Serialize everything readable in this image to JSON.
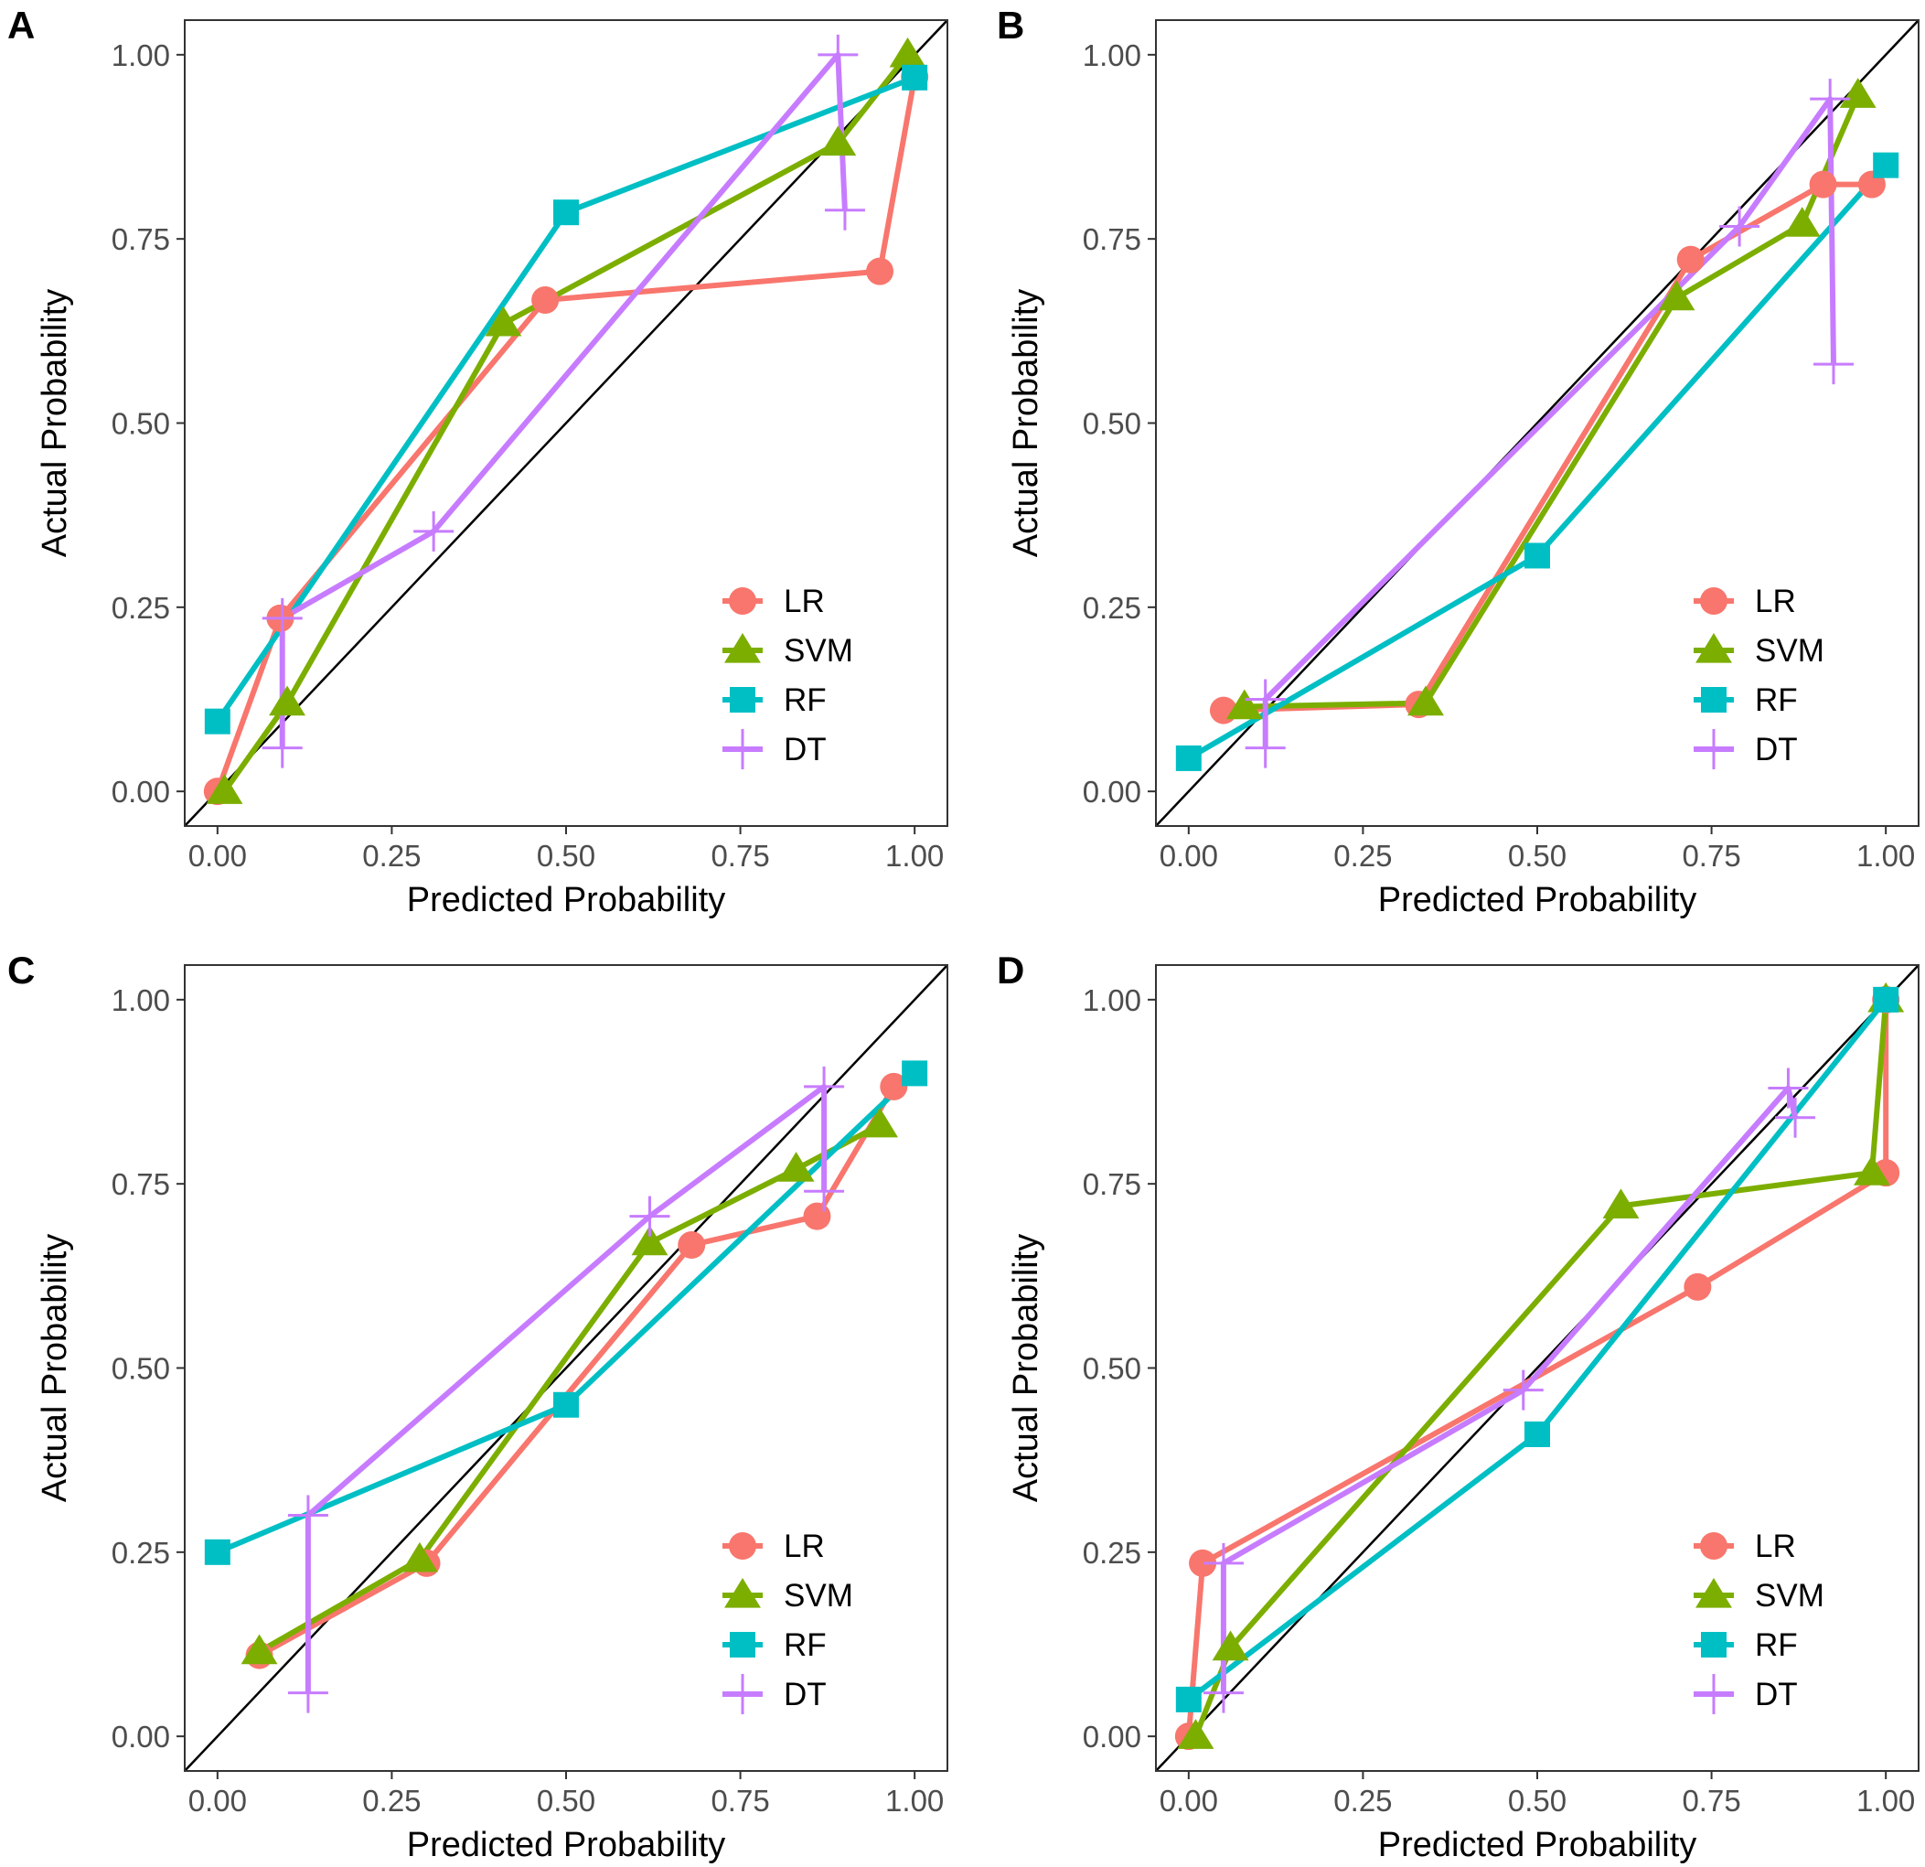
{
  "figure": {
    "series_styles": [
      {
        "name": "LR",
        "color": "#F8766D",
        "marker": "circle"
      },
      {
        "name": "SVM",
        "color": "#7CAE00",
        "marker": "triangle"
      },
      {
        "name": "RF",
        "color": "#00BFC4",
        "marker": "square"
      },
      {
        "name": "DT",
        "color": "#C77CFF",
        "marker": "cross"
      }
    ],
    "reference_line_color": "#000000"
  },
  "chart_data": [
    {
      "type": "line",
      "panel": "A",
      "xlabel": "Predicted Probability",
      "ylabel": "Actual Probability",
      "xlim": [
        0,
        1
      ],
      "ylim": [
        0,
        1
      ],
      "xticks": [
        "0.00",
        "0.25",
        "0.50",
        "0.75",
        "1.00"
      ],
      "yticks": [
        "0.00",
        "0.25",
        "0.50",
        "0.75",
        "1.00"
      ],
      "grid": false,
      "legend_position": "bottom-right",
      "reference_line": "y = x",
      "series": [
        {
          "name": "LR",
          "points": [
            [
              0.0,
              0.0
            ],
            [
              0.09,
              0.235
            ],
            [
              0.47,
              0.667
            ],
            [
              0.95,
              0.706
            ],
            [
              1.0,
              0.97
            ]
          ]
        },
        {
          "name": "SVM",
          "points": [
            [
              0.01,
              0.0
            ],
            [
              0.1,
              0.12
            ],
            [
              0.41,
              0.635
            ],
            [
              0.89,
              0.88
            ],
            [
              0.99,
              1.0
            ]
          ]
        },
        {
          "name": "RF",
          "points": [
            [
              0.0,
              0.095
            ],
            [
              0.5,
              0.786
            ],
            [
              1.0,
              0.969
            ]
          ]
        },
        {
          "name": "DT",
          "points": [
            [
              0.093,
              0.059
            ],
            [
              0.093,
              0.235
            ],
            [
              0.31,
              0.353
            ],
            [
              0.89,
              1.0
            ],
            [
              0.9,
              0.789
            ]
          ]
        }
      ]
    },
    {
      "type": "line",
      "panel": "B",
      "xlabel": "Predicted Probability",
      "ylabel": "Actual Probability",
      "xlim": [
        0,
        1
      ],
      "ylim": [
        0,
        1
      ],
      "xticks": [
        "0.00",
        "0.25",
        "0.50",
        "0.75",
        "1.00"
      ],
      "yticks": [
        "0.00",
        "0.25",
        "0.50",
        "0.75",
        "1.00"
      ],
      "grid": false,
      "legend_position": "bottom-right",
      "reference_line": "y = x",
      "series": [
        {
          "name": "LR",
          "points": [
            [
              0.05,
              0.11
            ],
            [
              0.33,
              0.118
            ],
            [
              0.72,
              0.722
            ],
            [
              0.91,
              0.824
            ],
            [
              0.98,
              0.824
            ]
          ]
        },
        {
          "name": "SVM",
          "points": [
            [
              0.08,
              0.115
            ],
            [
              0.34,
              0.12
            ],
            [
              0.7,
              0.67
            ],
            [
              0.88,
              0.77
            ],
            [
              0.96,
              0.945
            ]
          ]
        },
        {
          "name": "RF",
          "points": [
            [
              0.0,
              0.045
            ],
            [
              0.5,
              0.32
            ],
            [
              1.0,
              0.85
            ]
          ]
        },
        {
          "name": "DT",
          "points": [
            [
              0.11,
              0.059
            ],
            [
              0.11,
              0.125
            ],
            [
              0.79,
              0.767
            ],
            [
              0.92,
              0.94
            ],
            [
              0.925,
              0.58
            ]
          ]
        }
      ]
    },
    {
      "type": "line",
      "panel": "C",
      "xlabel": "Predicted Probability",
      "ylabel": "Actual Probability",
      "xlim": [
        0,
        1
      ],
      "ylim": [
        0,
        1
      ],
      "xticks": [
        "0.00",
        "0.25",
        "0.50",
        "0.75",
        "1.00"
      ],
      "yticks": [
        "0.00",
        "0.25",
        "0.50",
        "0.75",
        "1.00"
      ],
      "grid": false,
      "legend_position": "bottom-right",
      "reference_line": "y = x",
      "series": [
        {
          "name": "LR",
          "points": [
            [
              0.06,
              0.11
            ],
            [
              0.3,
              0.235
            ],
            [
              0.68,
              0.667
            ],
            [
              0.86,
              0.706
            ],
            [
              0.97,
              0.882
            ]
          ]
        },
        {
          "name": "SVM",
          "points": [
            [
              0.06,
              0.115
            ],
            [
              0.29,
              0.24
            ],
            [
              0.62,
              0.67
            ],
            [
              0.83,
              0.77
            ],
            [
              0.95,
              0.83
            ]
          ]
        },
        {
          "name": "RF",
          "points": [
            [
              0.0,
              0.25
            ],
            [
              0.5,
              0.45
            ],
            [
              1.0,
              0.9
            ]
          ]
        },
        {
          "name": "DT",
          "points": [
            [
              0.13,
              0.059
            ],
            [
              0.13,
              0.3
            ],
            [
              0.62,
              0.706
            ],
            [
              0.87,
              0.882
            ],
            [
              0.87,
              0.74
            ]
          ]
        }
      ]
    },
    {
      "type": "line",
      "panel": "D",
      "xlabel": "Predicted Probability",
      "ylabel": "Actual Probability",
      "xlim": [
        0,
        1
      ],
      "ylim": [
        0,
        1
      ],
      "xticks": [
        "0.00",
        "0.25",
        "0.50",
        "0.75",
        "1.00"
      ],
      "yticks": [
        "0.00",
        "0.25",
        "0.50",
        "0.75",
        "1.00"
      ],
      "grid": false,
      "legend_position": "bottom-right",
      "reference_line": "y = x",
      "series": [
        {
          "name": "LR",
          "points": [
            [
              0.0,
              0.0
            ],
            [
              0.02,
              0.235
            ],
            [
              0.73,
              0.61
            ],
            [
              1.0,
              0.765
            ],
            [
              1.0,
              1.0
            ]
          ]
        },
        {
          "name": "SVM",
          "points": [
            [
              0.01,
              0.0
            ],
            [
              0.06,
              0.12
            ],
            [
              0.62,
              0.72
            ],
            [
              0.98,
              0.765
            ],
            [
              1.0,
              1.0
            ]
          ]
        },
        {
          "name": "RF",
          "points": [
            [
              0.0,
              0.05
            ],
            [
              0.5,
              0.41
            ],
            [
              1.0,
              1.0
            ]
          ]
        },
        {
          "name": "DT",
          "points": [
            [
              0.05,
              0.059
            ],
            [
              0.05,
              0.235
            ],
            [
              0.48,
              0.47
            ],
            [
              0.86,
              0.88
            ],
            [
              0.87,
              0.84
            ]
          ]
        }
      ]
    }
  ]
}
